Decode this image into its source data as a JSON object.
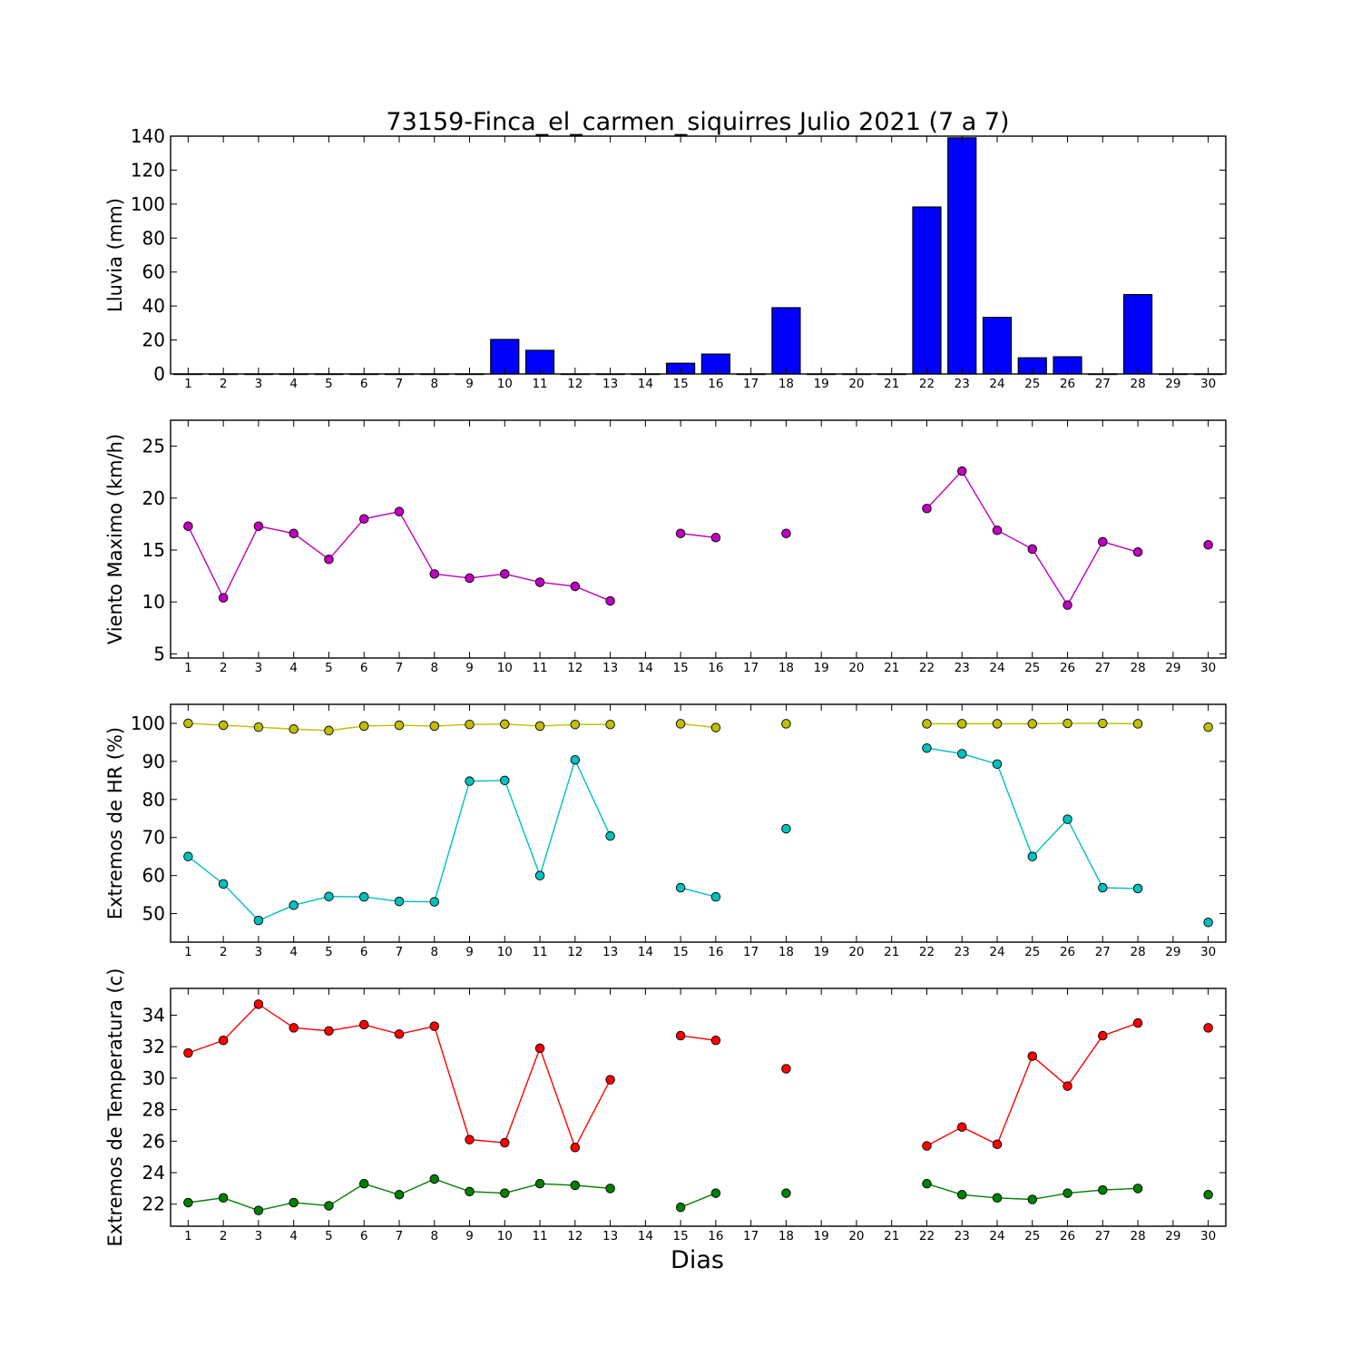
{
  "chart_data": [
    {
      "type": "bar",
      "title": "73159-Finca_el_carmen_siquirres Julio 2021  (7 a 7)",
      "ylabel": "Lluvia (mm)",
      "xlabel": "",
      "ylim": [
        0,
        140
      ],
      "yticks": [
        0,
        20,
        40,
        60,
        80,
        100,
        120,
        140
      ],
      "xlim": [
        0.5,
        30.5
      ],
      "x_tick_labels": [
        "1",
        "2",
        "3",
        "4",
        "5",
        "6",
        "7",
        "8",
        "9",
        "10",
        "11",
        "12",
        "13",
        "14",
        "15",
        "16",
        "17",
        "18",
        "19",
        "20",
        "21",
        "22",
        "23",
        "24",
        "25",
        "26",
        "27",
        "28",
        "29",
        "30"
      ],
      "series": [
        {
          "color": "#0000ff",
          "points": [
            [
              1,
              0
            ],
            [
              2,
              0
            ],
            [
              3,
              0
            ],
            [
              4,
              0
            ],
            [
              5,
              0
            ],
            [
              6,
              0
            ],
            [
              7,
              0
            ],
            [
              8,
              0
            ],
            [
              9,
              0
            ],
            [
              10,
              20.3
            ],
            [
              11,
              13.9
            ],
            [
              12,
              0
            ],
            [
              13,
              0
            ],
            [
              14,
              0
            ],
            [
              15,
              6.3
            ],
            [
              16,
              11.7
            ],
            [
              17,
              0
            ],
            [
              18,
              39
            ],
            [
              19,
              0
            ],
            [
              20,
              0
            ],
            [
              21,
              0
            ],
            [
              22,
              98.3
            ],
            [
              23,
              139
            ],
            [
              24,
              33.3
            ],
            [
              25,
              9.5
            ],
            [
              26,
              10.1
            ],
            [
              27,
              0
            ],
            [
              28,
              46.7
            ],
            [
              29,
              0
            ],
            [
              30,
              0
            ]
          ]
        }
      ],
      "grid": false
    },
    {
      "type": "line",
      "ylabel": "Viento Maximo (km/h)",
      "xlabel": "",
      "ylim": [
        4.6,
        27.5
      ],
      "yticks": [
        5,
        10,
        15,
        20,
        25
      ],
      "xlim": [
        0.5,
        30.5
      ],
      "x_tick_labels": [
        "1",
        "2",
        "3",
        "4",
        "5",
        "6",
        "7",
        "8",
        "9",
        "10",
        "11",
        "12",
        "13",
        "14",
        "15",
        "16",
        "17",
        "18",
        "19",
        "20",
        "21",
        "22",
        "23",
        "24",
        "25",
        "26",
        "27",
        "28",
        "29",
        "30"
      ],
      "series": [
        {
          "color": "#bf00bf",
          "points": [
            [
              1,
              17.3
            ],
            [
              2,
              10.4
            ],
            [
              3,
              17.3
            ],
            [
              4,
              16.6
            ],
            [
              5,
              14.1
            ],
            [
              6,
              18
            ],
            [
              7,
              18.7
            ],
            [
              8,
              12.7
            ],
            [
              9,
              12.3
            ],
            [
              10,
              12.7
            ],
            [
              11,
              11.9
            ],
            [
              12,
              11.5
            ],
            [
              13,
              10.1
            ],
            [
              14,
              null
            ],
            [
              15,
              16.6
            ],
            [
              16,
              16.2
            ],
            [
              17,
              null
            ],
            [
              18,
              16.6
            ],
            [
              19,
              null
            ],
            [
              20,
              null
            ],
            [
              21,
              null
            ],
            [
              22,
              19
            ],
            [
              23,
              22.6
            ],
            [
              24,
              16.9
            ],
            [
              25,
              15.1
            ],
            [
              26,
              9.7
            ],
            [
              27,
              15.8
            ],
            [
              28,
              14.8
            ],
            [
              29,
              null
            ],
            [
              30,
              15.5
            ]
          ]
        }
      ],
      "grid": false
    },
    {
      "type": "line",
      "ylabel": "Extremos de HR (%)",
      "xlabel": "",
      "ylim": [
        42.5,
        105
      ],
      "yticks": [
        50,
        60,
        70,
        80,
        90,
        100
      ],
      "xlim": [
        0.5,
        30.5
      ],
      "x_tick_labels": [
        "1",
        "2",
        "3",
        "4",
        "5",
        "6",
        "7",
        "8",
        "9",
        "10",
        "11",
        "12",
        "13",
        "14",
        "15",
        "16",
        "17",
        "18",
        "19",
        "20",
        "21",
        "22",
        "23",
        "24",
        "25",
        "26",
        "27",
        "28",
        "29",
        "30"
      ],
      "series": [
        {
          "color": "#bfbf00",
          "points": [
            [
              1,
              100
            ],
            [
              2,
              99.5
            ],
            [
              3,
              99
            ],
            [
              4,
              98.5
            ],
            [
              5,
              98.1
            ],
            [
              6,
              99.3
            ],
            [
              7,
              99.5
            ],
            [
              8,
              99.3
            ],
            [
              9,
              99.7
            ],
            [
              10,
              99.8
            ],
            [
              11,
              99.3
            ],
            [
              12,
              99.7
            ],
            [
              13,
              99.7
            ],
            [
              14,
              null
            ],
            [
              15,
              99.9
            ],
            [
              16,
              98.9
            ],
            [
              17,
              null
            ],
            [
              18,
              99.9
            ],
            [
              19,
              null
            ],
            [
              20,
              null
            ],
            [
              21,
              null
            ],
            [
              22,
              99.9
            ],
            [
              23,
              99.9
            ],
            [
              24,
              99.9
            ],
            [
              25,
              99.9
            ],
            [
              26,
              100
            ],
            [
              27,
              100
            ],
            [
              28,
              99.9
            ],
            [
              29,
              null
            ],
            [
              30,
              99
            ]
          ]
        },
        {
          "color": "#00bfbf",
          "points": [
            [
              1,
              65
            ],
            [
              2,
              57.8
            ],
            [
              3,
              48.2
            ],
            [
              4,
              52.2
            ],
            [
              5,
              54.5
            ],
            [
              6,
              54.4
            ],
            [
              7,
              53.2
            ],
            [
              8,
              53.1
            ],
            [
              9,
              84.8
            ],
            [
              10,
              85
            ],
            [
              11,
              60
            ],
            [
              12,
              90.4
            ],
            [
              13,
              70.4
            ],
            [
              14,
              null
            ],
            [
              15,
              56.8
            ],
            [
              16,
              54.4
            ],
            [
              17,
              null
            ],
            [
              18,
              72.3
            ],
            [
              19,
              null
            ],
            [
              20,
              null
            ],
            [
              21,
              null
            ],
            [
              22,
              93.5
            ],
            [
              23,
              92
            ],
            [
              24,
              89.3
            ],
            [
              25,
              65
            ],
            [
              26,
              74.8
            ],
            [
              27,
              56.8
            ],
            [
              28,
              56.6
            ],
            [
              29,
              null
            ],
            [
              30,
              47.7
            ]
          ]
        }
      ],
      "grid": false
    },
    {
      "type": "line",
      "ylabel": "Extremos de Temperatura (c)",
      "xlabel": "Dias",
      "ylim": [
        20.6,
        35.7
      ],
      "yticks": [
        22,
        24,
        26,
        28,
        30,
        32,
        34
      ],
      "xlim": [
        0.5,
        30.5
      ],
      "x_tick_labels": [
        "1",
        "2",
        "3",
        "4",
        "5",
        "6",
        "7",
        "8",
        "9",
        "10",
        "11",
        "12",
        "13",
        "14",
        "15",
        "16",
        "17",
        "18",
        "19",
        "20",
        "21",
        "22",
        "23",
        "24",
        "25",
        "26",
        "27",
        "28",
        "29",
        "30"
      ],
      "series": [
        {
          "color": "#ff0000",
          "points": [
            [
              1,
              31.6
            ],
            [
              2,
              32.4
            ],
            [
              3,
              34.7
            ],
            [
              4,
              33.2
            ],
            [
              5,
              33
            ],
            [
              6,
              33.4
            ],
            [
              7,
              32.8
            ],
            [
              8,
              33.3
            ],
            [
              9,
              26.1
            ],
            [
              10,
              25.9
            ],
            [
              11,
              31.9
            ],
            [
              12,
              25.6
            ],
            [
              13,
              29.9
            ],
            [
              14,
              null
            ],
            [
              15,
              32.7
            ],
            [
              16,
              32.4
            ],
            [
              17,
              null
            ],
            [
              18,
              30.6
            ],
            [
              19,
              null
            ],
            [
              20,
              null
            ],
            [
              21,
              null
            ],
            [
              22,
              25.7
            ],
            [
              23,
              26.9
            ],
            [
              24,
              25.8
            ],
            [
              25,
              31.4
            ],
            [
              26,
              29.5
            ],
            [
              27,
              32.7
            ],
            [
              28,
              33.5
            ],
            [
              29,
              null
            ],
            [
              30,
              33.2
            ]
          ]
        },
        {
          "color": "#008000",
          "points": [
            [
              1,
              22.1
            ],
            [
              2,
              22.4
            ],
            [
              3,
              21.6
            ],
            [
              4,
              22.1
            ],
            [
              5,
              21.9
            ],
            [
              6,
              23.3
            ],
            [
              7,
              22.6
            ],
            [
              8,
              23.6
            ],
            [
              9,
              22.8
            ],
            [
              10,
              22.7
            ],
            [
              11,
              23.3
            ],
            [
              12,
              23.2
            ],
            [
              13,
              23
            ],
            [
              14,
              null
            ],
            [
              15,
              21.8
            ],
            [
              16,
              22.7
            ],
            [
              17,
              null
            ],
            [
              18,
              22.7
            ],
            [
              19,
              null
            ],
            [
              20,
              null
            ],
            [
              21,
              null
            ],
            [
              22,
              23.3
            ],
            [
              23,
              22.6
            ],
            [
              24,
              22.4
            ],
            [
              25,
              22.3
            ],
            [
              26,
              22.7
            ],
            [
              27,
              22.9
            ],
            [
              28,
              23
            ],
            [
              29,
              null
            ],
            [
              30,
              22.6
            ]
          ]
        }
      ],
      "grid": false
    }
  ]
}
